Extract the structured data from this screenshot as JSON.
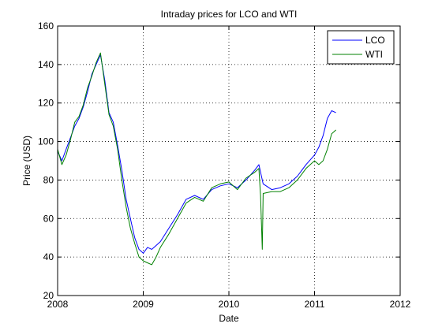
{
  "chart_data": {
    "type": "line",
    "title": "Intraday prices for LCO and WTI",
    "xlabel": "Date",
    "ylabel": "Price (USD)",
    "xlim": [
      2008,
      2012
    ],
    "ylim": [
      20,
      160
    ],
    "xticks": [
      "2008",
      "2009",
      "2010",
      "2011",
      "2012"
    ],
    "yticks": [
      "20",
      "40",
      "60",
      "80",
      "100",
      "120",
      "140",
      "160"
    ],
    "grid": true,
    "legend_position": "top-right",
    "series": [
      {
        "name": "LCO",
        "color": "#0000ff",
        "x": [
          2008.0,
          2008.05,
          2008.1,
          2008.15,
          2008.2,
          2008.25,
          2008.3,
          2008.35,
          2008.4,
          2008.45,
          2008.5,
          2008.55,
          2008.6,
          2008.65,
          2008.7,
          2008.75,
          2008.8,
          2008.85,
          2008.9,
          2008.95,
          2009.0,
          2009.05,
          2009.1,
          2009.15,
          2009.2,
          2009.3,
          2009.4,
          2009.5,
          2009.6,
          2009.7,
          2009.8,
          2009.9,
          2010.0,
          2010.1,
          2010.2,
          2010.3,
          2010.35,
          2010.4,
          2010.5,
          2010.6,
          2010.7,
          2010.8,
          2010.9,
          2011.0,
          2011.05,
          2011.1,
          2011.15,
          2011.2,
          2011.25
        ],
        "y": [
          95,
          90,
          96,
          102,
          108,
          112,
          118,
          126,
          135,
          140,
          145,
          132,
          115,
          110,
          98,
          85,
          70,
          60,
          50,
          44,
          42,
          45,
          44,
          46,
          48,
          55,
          62,
          70,
          72,
          70,
          75,
          77,
          78,
          76,
          80,
          85,
          88,
          78,
          75,
          76,
          78,
          82,
          88,
          93,
          97,
          103,
          112,
          116,
          115
        ]
      },
      {
        "name": "WTI",
        "color": "#008000",
        "x": [
          2008.0,
          2008.05,
          2008.1,
          2008.15,
          2008.2,
          2008.25,
          2008.3,
          2008.35,
          2008.4,
          2008.45,
          2008.5,
          2008.55,
          2008.6,
          2008.65,
          2008.7,
          2008.75,
          2008.8,
          2008.85,
          2008.9,
          2008.95,
          2009.0,
          2009.05,
          2009.1,
          2009.15,
          2009.2,
          2009.3,
          2009.4,
          2009.5,
          2009.6,
          2009.7,
          2009.8,
          2009.9,
          2010.0,
          2010.1,
          2010.2,
          2010.3,
          2010.35,
          2010.37,
          2010.39,
          2010.4,
          2010.5,
          2010.6,
          2010.7,
          2010.8,
          2010.9,
          2011.0,
          2011.05,
          2011.1,
          2011.15,
          2011.2,
          2011.25
        ],
        "y": [
          96,
          88,
          93,
          101,
          110,
          113,
          119,
          128,
          134,
          141,
          146,
          130,
          114,
          108,
          96,
          80,
          66,
          55,
          47,
          40,
          38,
          37,
          36,
          40,
          45,
          52,
          60,
          68,
          71,
          69,
          76,
          78,
          79,
          75,
          81,
          84,
          86,
          72,
          44,
          73,
          74,
          74,
          76,
          80,
          86,
          90,
          88,
          90,
          96,
          104,
          106
        ]
      }
    ]
  }
}
